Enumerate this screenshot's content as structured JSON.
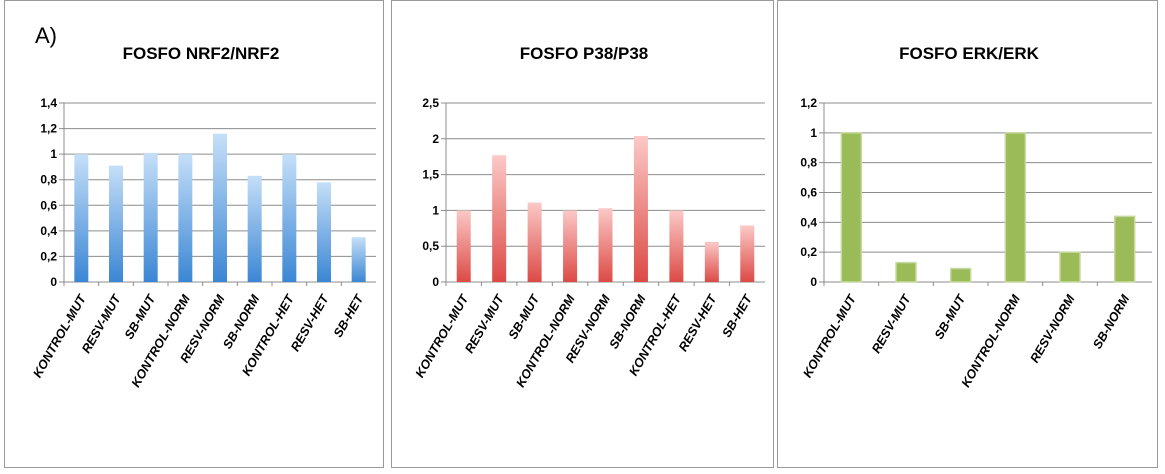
{
  "panel_letter": "A)",
  "colors": {
    "blue_top": "#c5dff8",
    "blue_bottom": "#3b86d4",
    "red_top": "#fbc9c7",
    "red_bottom": "#dc4a45",
    "green": "#9bbb59",
    "green_edge": "#c6d9a0",
    "grid": "#8c8c8c"
  },
  "chart_data": [
    {
      "type": "bar",
      "title": "FOSFO NRF2/NRF2",
      "categories": [
        "KONTROL-MUT",
        "RESV-MUT",
        "SB-MUT",
        "KONTROL-NORM",
        "RESV-NORM",
        "SB-NORM",
        "KONTROL-HET",
        "RESV-HET",
        "SB-HET"
      ],
      "values": [
        1.0,
        0.91,
        1.01,
        1.0,
        1.16,
        0.83,
        1.0,
        0.78,
        0.35
      ],
      "ylim": [
        0,
        1.4
      ],
      "yticks": [
        "0",
        "0,2",
        "0,4",
        "0,6",
        "0,8",
        "1",
        "1,2",
        "1,4"
      ],
      "ytick_values": [
        0,
        0.2,
        0.4,
        0.6,
        0.8,
        1.0,
        1.2,
        1.4
      ],
      "grid": true,
      "color": "blue"
    },
    {
      "type": "bar",
      "title": "FOSFO P38/P38",
      "categories": [
        "KONTROL-MUT",
        "RESV-MUT",
        "SB-MUT",
        "KONTROL-NORM",
        "RESV-NORM",
        "SB-NORM",
        "KONTROL-HET",
        "RESV-HET",
        "SB-HET"
      ],
      "values": [
        1.0,
        1.77,
        1.11,
        1.0,
        1.03,
        2.04,
        1.0,
        0.56,
        0.79
      ],
      "ylim": [
        0,
        2.5
      ],
      "yticks": [
        "0",
        "0,5",
        "1",
        "1,5",
        "2",
        "2,5"
      ],
      "ytick_values": [
        0,
        0.5,
        1.0,
        1.5,
        2.0,
        2.5
      ],
      "grid": true,
      "color": "red"
    },
    {
      "type": "bar",
      "title": "FOSFO ERK/ERK",
      "categories": [
        "KONTROL-MUT",
        "RESV-MUT",
        "SB-MUT",
        "KONTROL-NORM",
        "RESV-NORM",
        "SB-NORM"
      ],
      "values": [
        1.0,
        0.13,
        0.09,
        1.0,
        0.2,
        0.44
      ],
      "ylim": [
        0,
        1.2
      ],
      "yticks": [
        "0",
        "0,2",
        "0,4",
        "0,6",
        "0,8",
        "1",
        "1,2"
      ],
      "ytick_values": [
        0,
        0.2,
        0.4,
        0.6,
        0.8,
        1.0,
        1.2
      ],
      "grid": true,
      "color": "green"
    }
  ]
}
